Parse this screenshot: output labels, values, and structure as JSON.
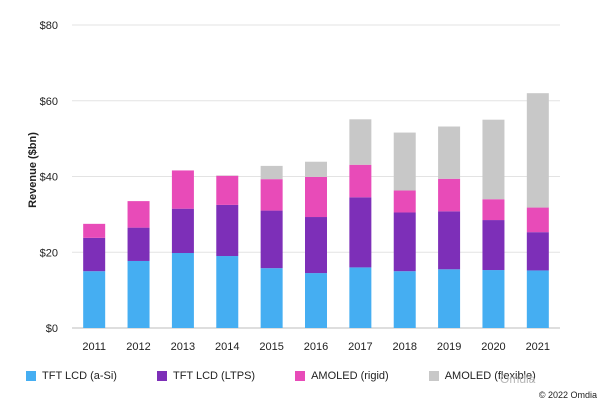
{
  "chart_data": {
    "type": "bar",
    "stacked": true,
    "categories": [
      "2011",
      "2012",
      "2013",
      "2014",
      "2015",
      "2016",
      "2017",
      "2018",
      "2019",
      "2020",
      "2021"
    ],
    "series": [
      {
        "name": "TFT LCD (a-Si)",
        "color": "#45aef2",
        "values": [
          15.0,
          17.7,
          19.8,
          19.0,
          15.8,
          14.5,
          16.0,
          15.0,
          15.5,
          15.3,
          15.2
        ]
      },
      {
        "name": "TFT LCD (LTPS)",
        "color": "#7d2fb8",
        "values": [
          8.8,
          8.8,
          11.7,
          13.5,
          15.2,
          14.8,
          18.5,
          15.5,
          15.3,
          13.2,
          10.1
        ]
      },
      {
        "name": "AMOLED (rigid)",
        "color": "#e84bb8",
        "values": [
          3.7,
          7.0,
          10.1,
          7.7,
          8.3,
          10.6,
          8.6,
          5.8,
          8.6,
          5.5,
          6.5
        ]
      },
      {
        "name": "AMOLED (flexible)",
        "color": "#c8c8c8",
        "values": [
          0,
          0,
          0,
          0.1,
          3.5,
          4.0,
          12.0,
          15.3,
          13.8,
          21.0,
          30.2
        ]
      }
    ],
    "ylabel": "Revenue ($bn)",
    "xlabel": "",
    "ylim": [
      0,
      80
    ],
    "yticks": [
      0,
      20,
      40,
      60,
      80
    ],
    "ytick_labels": [
      "$0",
      "$20",
      "$40",
      "$60",
      "$80"
    ],
    "grid": true,
    "legend_position": "bottom"
  },
  "watermark": "Omdia",
  "copyright": "© 2022 Omdia"
}
